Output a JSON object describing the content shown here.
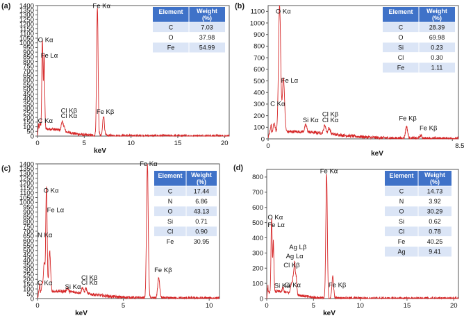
{
  "chart_data": [
    {
      "panel": "(a)",
      "type": "line",
      "xlabel": "keV",
      "xlim": [
        0,
        20.5
      ],
      "ylim": [
        0,
        1400
      ],
      "xticks": [
        "0",
        "5",
        "10",
        "15",
        "20"
      ],
      "yticks": [
        "0",
        "50",
        "100",
        "150",
        "200",
        "250",
        "300",
        "350",
        "400",
        "450",
        "500",
        "550",
        "600",
        "650",
        "700",
        "750",
        "800",
        "850",
        "900",
        "950",
        "1000",
        "1050",
        "1100",
        "1150",
        "1200",
        "1250",
        "1300",
        "1350",
        "1400"
      ],
      "peaks": [
        {
          "x": 0.28,
          "y": 70,
          "w": 0.06,
          "label": "C Kα",
          "label_at": [
            0.05,
            140
          ]
        },
        {
          "x": 0.52,
          "y": 960,
          "w": 0.06,
          "label": "O Kα",
          "label_at": [
            0.05,
            1010
          ]
        },
        {
          "x": 0.71,
          "y": 820,
          "w": 0.06,
          "label": "Fe Lα",
          "label_at": [
            0.35,
            840
          ]
        },
        {
          "x": 2.62,
          "y": 100,
          "w": 0.08,
          "label": "Cl Kβ",
          "label_at": [
            2.5,
            250
          ]
        },
        {
          "x": 2.82,
          "y": 60,
          "w": 0.08,
          "label": "Cl Kα",
          "label_at": [
            2.5,
            195
          ]
        },
        {
          "x": 6.4,
          "y": 1370,
          "w": 0.08,
          "label": "Fe Kα",
          "label_at": [
            5.9,
            1375
          ]
        },
        {
          "x": 7.06,
          "y": 215,
          "w": 0.09,
          "label": "Fe Kβ",
          "label_at": [
            6.3,
            240
          ]
        }
      ],
      "table": {
        "headers": [
          "Element",
          "Weight\n(%)"
        ],
        "rows": [
          [
            "C",
            "7.03"
          ],
          [
            "O",
            "37.98"
          ],
          [
            "Fe",
            "54.99"
          ]
        ]
      },
      "colors": {
        "spectrum": "#d62728",
        "table_header": "#3f72c8",
        "row_even": "#dbe5f6",
        "row_odd": "#ffffff"
      }
    },
    {
      "panel": "(b)",
      "type": "line",
      "xlabel": "keV",
      "xlim": [
        0,
        8.8
      ],
      "ylim": [
        0,
        1150
      ],
      "xticks": [
        "0",
        "8.518"
      ],
      "yticks": [
        "0",
        "100",
        "200",
        "300",
        "400",
        "500",
        "600",
        "700",
        "800",
        "900",
        "1000",
        "1100"
      ],
      "peaks": [
        {
          "x": 0.28,
          "y": 80,
          "w": 0.04,
          "label": "C Kα",
          "label_at": [
            0.1,
            285
          ]
        },
        {
          "x": 0.53,
          "y": 1090,
          "w": 0.05,
          "label": "O Kα",
          "label_at": [
            0.35,
            1080
          ]
        },
        {
          "x": 0.71,
          "y": 470,
          "w": 0.05,
          "label": "Fe Lα",
          "label_at": [
            0.6,
            485
          ]
        },
        {
          "x": 1.74,
          "y": 60,
          "w": 0.05,
          "label": "Si Kα",
          "label_at": [
            1.6,
            145
          ]
        },
        {
          "x": 2.62,
          "y": 70,
          "w": 0.05,
          "label": "Cl Kβ",
          "label_at": [
            2.5,
            195
          ]
        },
        {
          "x": 2.82,
          "y": 50,
          "w": 0.05,
          "label": "Cl Kα",
          "label_at": [
            2.5,
            145
          ]
        },
        {
          "x": 6.4,
          "y": 100,
          "w": 0.05,
          "label": "Fe Kβ",
          "label_at": [
            6.05,
            160
          ]
        },
        {
          "x": 7.06,
          "y": 25,
          "w": 0.05,
          "label": "Fe Kβ",
          "label_at": [
            7.0,
            75
          ]
        }
      ],
      "table": {
        "headers": [
          "Element",
          "Weight\n(%)"
        ],
        "rows": [
          [
            "C",
            "28.39"
          ],
          [
            "O",
            "69.98"
          ],
          [
            "Si",
            "0.23"
          ],
          [
            "Cl",
            "0.30"
          ],
          [
            "Fe",
            "1.11"
          ]
        ]
      },
      "colors": {
        "spectrum": "#d62728",
        "table_header": "#3f72c8",
        "row_even": "#dbe5f6",
        "row_odd": "#ffffff"
      }
    },
    {
      "panel": "(c)",
      "type": "line",
      "xlabel": "keV",
      "xlim": [
        0,
        10.6
      ],
      "ylim": [
        0,
        1400
      ],
      "xticks": [
        "0",
        "5",
        "10"
      ],
      "yticks": [
        "0",
        "50",
        "100",
        "150",
        "200",
        "250",
        "300",
        "350",
        "400",
        "450",
        "500",
        "550",
        "600",
        "650",
        "700",
        "750",
        "800",
        "850",
        "900",
        "950",
        "1000",
        "1050",
        "1100",
        "1150",
        "1200",
        "1250",
        "1300",
        "1350",
        "1400"
      ],
      "peaks": [
        {
          "x": 0.28,
          "y": 90,
          "w": 0.04,
          "label": "C Kα",
          "label_at": [
            0.0,
            140
          ]
        },
        {
          "x": 0.39,
          "y": 310,
          "w": 0.04,
          "label": "N Kα",
          "label_at": [
            0.0,
            640
          ]
        },
        {
          "x": 0.52,
          "y": 1100,
          "w": 0.04,
          "label": "O Kα",
          "label_at": [
            0.35,
            1100
          ]
        },
        {
          "x": 0.71,
          "y": 420,
          "w": 0.05,
          "label": "Fe Lα",
          "label_at": [
            0.55,
            900
          ]
        },
        {
          "x": 1.74,
          "y": 40,
          "w": 0.05,
          "label": "Si Kα",
          "label_at": [
            1.6,
            100
          ]
        },
        {
          "x": 2.62,
          "y": 60,
          "w": 0.05,
          "label": "Cl Kβ",
          "label_at": [
            2.55,
            195
          ]
        },
        {
          "x": 2.82,
          "y": 55,
          "w": 0.05,
          "label": "Cl Kα",
          "label_at": [
            2.55,
            145
          ]
        },
        {
          "x": 6.4,
          "y": 1390,
          "w": 0.05,
          "label": "Fe Kα",
          "label_at": [
            5.95,
            1380
          ]
        },
        {
          "x": 7.06,
          "y": 210,
          "w": 0.06,
          "label": "Fe Kβ",
          "label_at": [
            6.8,
            275
          ]
        }
      ],
      "table": {
        "headers": [
          "Element",
          "Weight\n(%)"
        ],
        "rows": [
          [
            "C",
            "17.44"
          ],
          [
            "N",
            "6.86"
          ],
          [
            "O",
            "43.13"
          ],
          [
            "Si",
            "0.71"
          ],
          [
            "Cl",
            "0.90"
          ],
          [
            "Fe",
            "30.95"
          ]
        ]
      },
      "colors": {
        "spectrum": "#d62728",
        "table_header": "#3f72c8",
        "row_even": "#dbe5f6",
        "row_odd": "#ffffff"
      }
    },
    {
      "panel": "(d)",
      "type": "line",
      "xlabel": "keV",
      "xlim": [
        0,
        20.5
      ],
      "ylim": [
        0,
        850
      ],
      "xticks": [
        "0",
        "5",
        "10",
        "15",
        "20"
      ],
      "yticks": [
        "0",
        "100",
        "200",
        "300",
        "400",
        "500",
        "600",
        "700",
        "800"
      ],
      "peaks": [
        {
          "x": 0.52,
          "y": 480,
          "w": 0.06,
          "label": "O Kα",
          "label_at": [
            0.1,
            520
          ]
        },
        {
          "x": 0.71,
          "y": 330,
          "w": 0.06,
          "label": "Fe Lα",
          "label_at": [
            0.1,
            470
          ]
        },
        {
          "x": 1.74,
          "y": 30,
          "w": 0.07,
          "label": "Si Kα",
          "label_at": [
            0.8,
            70
          ]
        },
        {
          "x": 2.62,
          "y": 60,
          "w": 0.08,
          "label": "Cl Kβ",
          "label_at": [
            1.8,
            205
          ]
        },
        {
          "x": 2.82,
          "y": 100,
          "w": 0.08,
          "label": "Cl Kα",
          "label_at": [
            1.9,
            75
          ]
        },
        {
          "x": 2.98,
          "y": 200,
          "w": 0.07,
          "label": "Ag Lα",
          "label_at": [
            2.05,
            265
          ]
        },
        {
          "x": 3.15,
          "y": 110,
          "w": 0.07,
          "label": "Ag Lβ",
          "label_at": [
            2.4,
            325
          ]
        },
        {
          "x": 6.4,
          "y": 820,
          "w": 0.08,
          "label": "Fe Kα",
          "label_at": [
            5.7,
            825
          ]
        },
        {
          "x": 7.06,
          "y": 145,
          "w": 0.09,
          "label": "Fe Kβ",
          "label_at": [
            6.6,
            75
          ]
        }
      ],
      "table": {
        "headers": [
          "Element",
          "Weight\n(%)"
        ],
        "rows": [
          [
            "C",
            "14.73"
          ],
          [
            "N",
            "3.92"
          ],
          [
            "O",
            "30.29"
          ],
          [
            "Si",
            "0.62"
          ],
          [
            "Cl",
            "0.78"
          ],
          [
            "Fe",
            "40.25"
          ],
          [
            "Ag",
            "9.41"
          ]
        ]
      },
      "colors": {
        "spectrum": "#d62728",
        "table_header": "#3f72c8",
        "row_even": "#dbe5f6",
        "row_odd": "#ffffff"
      }
    }
  ]
}
